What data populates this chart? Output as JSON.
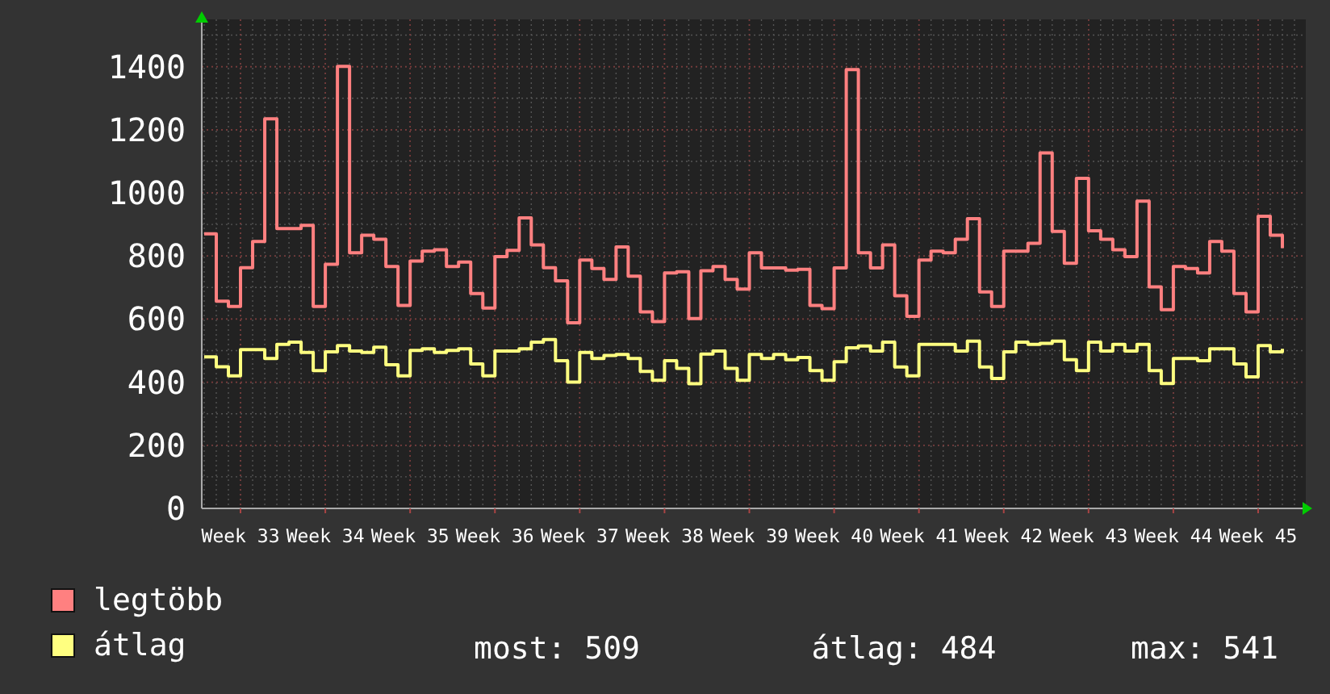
{
  "chart_data": {
    "type": "step",
    "categories": [
      null,
      null,
      null,
      "Week 33",
      null,
      null,
      null,
      null,
      null,
      null,
      "Week 34",
      null,
      null,
      null,
      null,
      null,
      null,
      "Week 35",
      null,
      null,
      null,
      null,
      null,
      null,
      "Week 36",
      null,
      null,
      null,
      null,
      null,
      null,
      "Week 37",
      null,
      null,
      null,
      null,
      null,
      null,
      "Week 38",
      null,
      null,
      null,
      null,
      null,
      null,
      "Week 39",
      null,
      null,
      null,
      null,
      null,
      null,
      "Week 40",
      null,
      null,
      null,
      null,
      null,
      null,
      "Week 41",
      null,
      null,
      null,
      null,
      null,
      null,
      "Week 42",
      null,
      null,
      null,
      null,
      null,
      null,
      "Week 43",
      null,
      null,
      null,
      null,
      null,
      null,
      "Week 44",
      null,
      null,
      null,
      null,
      null,
      null,
      "Week 45",
      null,
      null
    ],
    "series": [
      {
        "name": "legtöbb",
        "color": "#ff8080",
        "values": [
          870,
          657,
          640,
          763,
          846,
          1235,
          887,
          887,
          897,
          640,
          774,
          1401,
          810,
          866,
          853,
          767,
          643,
          784,
          815,
          820,
          767,
          781,
          681,
          635,
          798,
          818,
          921,
          835,
          763,
          721,
          588,
          787,
          760,
          726,
          829,
          736,
          623,
          592,
          746,
          750,
          602,
          753,
          767,
          726,
          695,
          810,
          762,
          762,
          755,
          758,
          643,
          633,
          762,
          1391,
          810,
          762,
          835,
          674,
          609,
          787,
          815,
          810,
          853,
          918,
          686,
          640,
          815,
          815,
          840,
          1127,
          878,
          777,
          1046,
          880,
          853,
          820,
          798,
          974,
          702,
          630,
          767,
          760,
          746,
          846,
          815,
          681,
          623,
          926,
          866,
          825
        ]
      },
      {
        "name": "átlag",
        "color": "#ffff80",
        "values": [
          480,
          449,
          420,
          503,
          503,
          475,
          520,
          527,
          494,
          437,
          496,
          516,
          499,
          494,
          511,
          455,
          420,
          501,
          506,
          494,
          501,
          506,
          458,
          420,
          499,
          499,
          506,
          527,
          535,
          468,
          400,
          494,
          475,
          485,
          488,
          475,
          434,
          406,
          468,
          444,
          395,
          489,
          499,
          444,
          406,
          488,
          475,
          488,
          471,
          478,
          437,
          406,
          465,
          509,
          515,
          499,
          527,
          448,
          420,
          520,
          520,
          520,
          499,
          530,
          448,
          412,
          496,
          527,
          520,
          523,
          530,
          471,
          437,
          527,
          499,
          520,
          499,
          520,
          437,
          396,
          475,
          475,
          468,
          506,
          506,
          458,
          417,
          516,
          496,
          506
        ]
      }
    ],
    "ylim": [
      0,
      1550
    ],
    "yticks": [
      0,
      200,
      400,
      600,
      800,
      1000,
      1200,
      1400
    ],
    "grid": true,
    "legend": "bottom",
    "annotations": [
      "most: 509",
      "átlag: 484",
      "max: 541"
    ]
  }
}
